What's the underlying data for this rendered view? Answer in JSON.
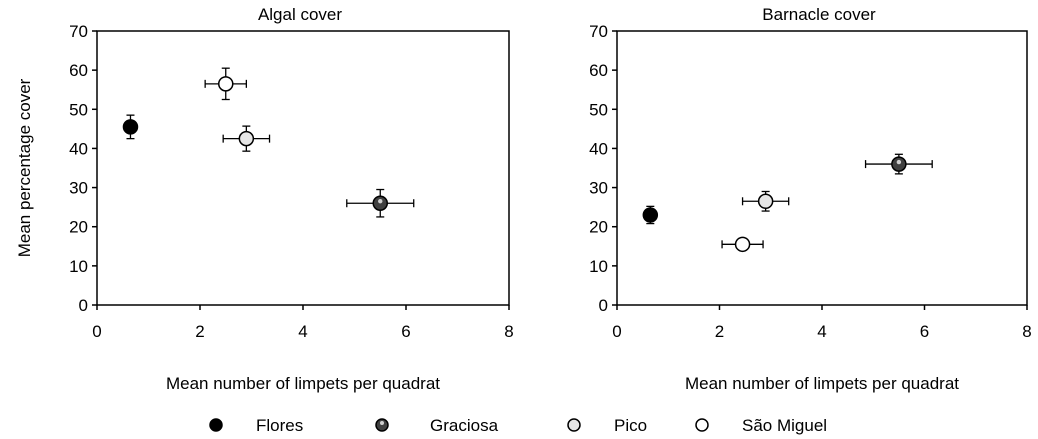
{
  "chart_data": [
    {
      "type": "scatter",
      "title": "Algal cover",
      "xlabel": "Mean number of limpets per quadrat",
      "ylabel": "Mean percentage cover",
      "xlim": [
        0,
        8
      ],
      "ylim": [
        0,
        70
      ],
      "xticks": [
        "0",
        "2",
        "4",
        "6",
        "8"
      ],
      "yticks": [
        "0",
        "10",
        "20",
        "30",
        "40",
        "50",
        "60",
        "70"
      ],
      "grid": false,
      "series": [
        {
          "name": "Flores",
          "x": 0.65,
          "y": 45.5,
          "xerr": 0.1,
          "yerr": 3.0
        },
        {
          "name": "Graciosa",
          "x": 5.5,
          "y": 26.0,
          "xerr": 0.65,
          "yerr": 3.5
        },
        {
          "name": "Pico",
          "x": 2.9,
          "y": 42.5,
          "xerr": 0.45,
          "yerr": 3.2
        },
        {
          "name": "São Miguel",
          "x": 2.5,
          "y": 56.5,
          "xerr": 0.4,
          "yerr": 4.0
        }
      ]
    },
    {
      "type": "scatter",
      "title": "Barnacle cover",
      "xlabel": "Mean number of limpets per quadrat",
      "ylabel": "",
      "xlim": [
        0,
        8
      ],
      "ylim": [
        0,
        70
      ],
      "xticks": [
        "0",
        "2",
        "4",
        "6",
        "8"
      ],
      "yticks": [
        "0",
        "10",
        "20",
        "30",
        "40",
        "50",
        "60",
        "70"
      ],
      "grid": false,
      "series": [
        {
          "name": "Flores",
          "x": 0.65,
          "y": 23.0,
          "xerr": 0.1,
          "yerr": 2.2
        },
        {
          "name": "Graciosa",
          "x": 5.5,
          "y": 36.0,
          "xerr": 0.65,
          "yerr": 2.5
        },
        {
          "name": "Pico",
          "x": 2.9,
          "y": 26.5,
          "xerr": 0.45,
          "yerr": 2.5
        },
        {
          "name": "São Miguel",
          "x": 2.45,
          "y": 15.5,
          "xerr": 0.4,
          "yerr": 1.5
        }
      ]
    }
  ],
  "legend": {
    "placement": "bottom",
    "items": [
      {
        "name": "Flores",
        "marker": "filled-circle"
      },
      {
        "name": "Graciosa",
        "marker": "half-filled-circle"
      },
      {
        "name": "Pico",
        "marker": "light-circle"
      },
      {
        "name": "São Miguel",
        "marker": "open-circle"
      }
    ]
  }
}
